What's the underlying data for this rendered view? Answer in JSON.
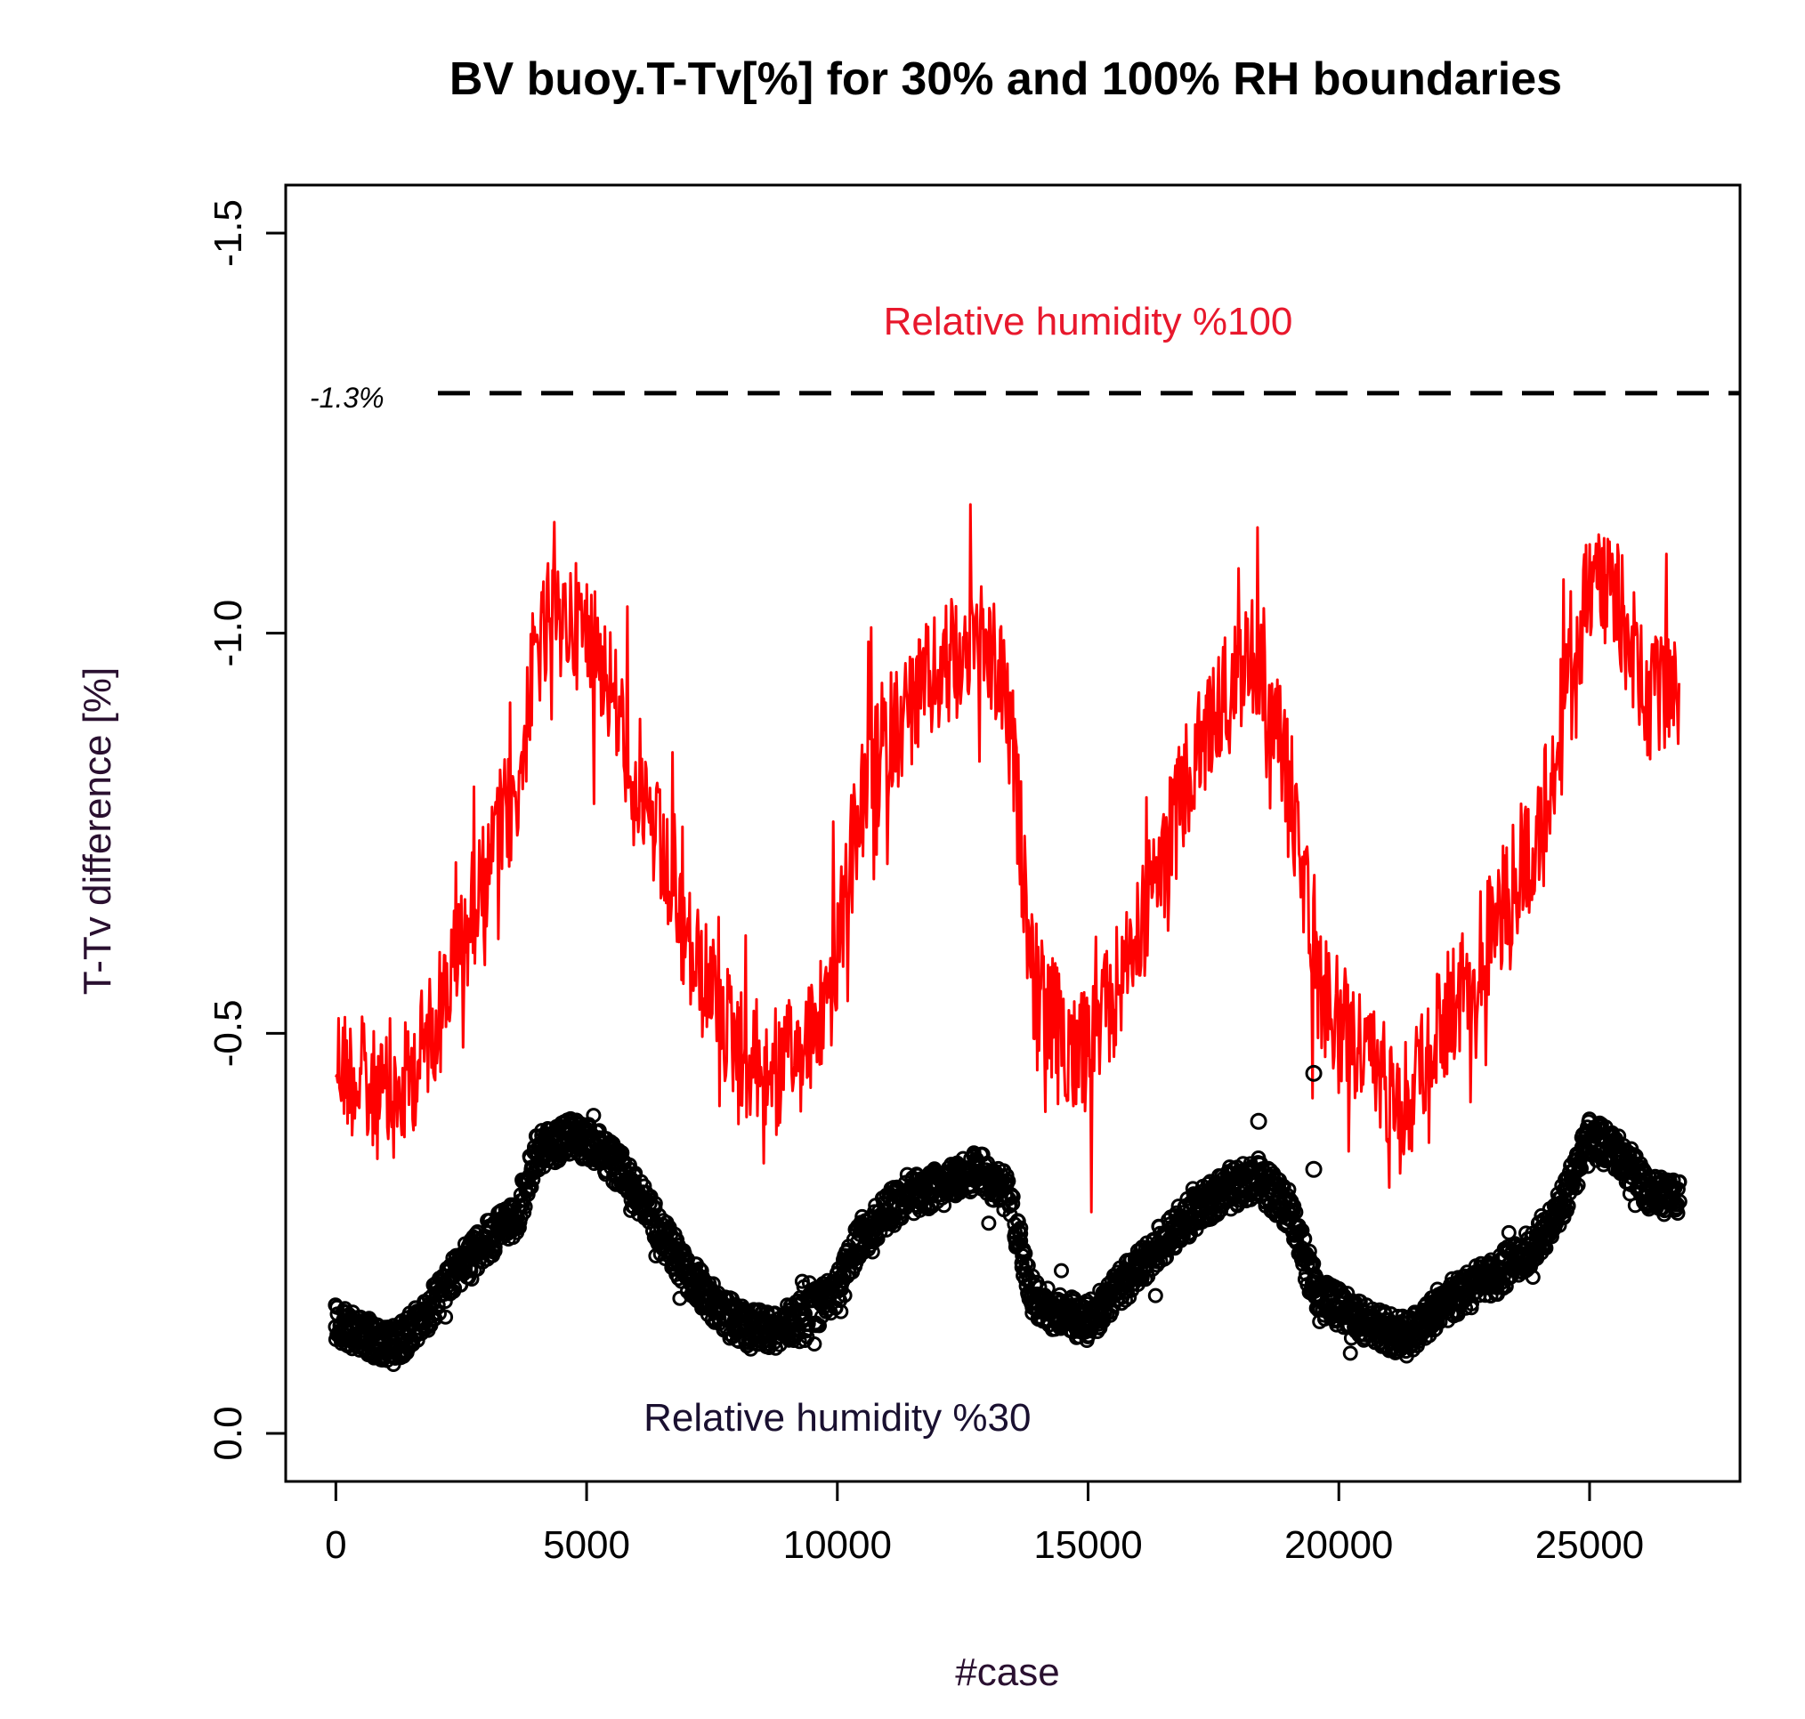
{
  "chart_data": {
    "type": "line",
    "title": "BV buoy.T-Tv[%] for 30% and 100% RH boundaries",
    "xlabel": "#case",
    "ylabel": "T-Tv difference [%]",
    "xlim": [
      -1000,
      28000
    ],
    "ylim": [
      0.06,
      -1.56
    ],
    "x_ticks": [
      0,
      5000,
      10000,
      15000,
      20000,
      25000
    ],
    "x_tick_labels": [
      "0",
      "5000",
      "10000",
      "15000",
      "20000",
      "25000"
    ],
    "y_ticks": [
      0.0,
      -0.5,
      -1.0,
      -1.5
    ],
    "y_tick_labels": [
      "0.0",
      "-0.5",
      "-1.0",
      "-1.5"
    ],
    "grid": false,
    "reference_line": {
      "y": -1.3,
      "label": "-1.3%",
      "style": "dashed",
      "color": "#000000"
    },
    "annotations": [
      {
        "text": "Relative humidity %100",
        "x": 15000,
        "y": -1.39,
        "color": "#ff0000"
      },
      {
        "text": "Relative humidity %30",
        "x": 10000,
        "y": -0.02,
        "color": "#000000"
      }
    ],
    "series": [
      {
        "name": "Relative humidity %100",
        "style": "line",
        "color": "#ff0000",
        "x": [
          0,
          600,
          1200,
          1800,
          2400,
          3000,
          3600,
          4000,
          4600,
          5200,
          5800,
          6400,
          7000,
          7600,
          8200,
          8800,
          9400,
          9900,
          10400,
          11000,
          11600,
          12200,
          12800,
          13400,
          13900,
          14400,
          15000,
          15600,
          16200,
          16800,
          17400,
          18000,
          18400,
          19000,
          19600,
          20200,
          20800,
          21400,
          22000,
          22600,
          23200,
          23800,
          24400,
          25000,
          25600,
          26200,
          26800
        ],
        "y": [
          -0.47,
          -0.43,
          -0.41,
          -0.49,
          -0.59,
          -0.71,
          -0.8,
          -0.98,
          -1.02,
          -0.99,
          -0.86,
          -0.74,
          -0.61,
          -0.53,
          -0.47,
          -0.45,
          -0.48,
          -0.56,
          -0.77,
          -0.87,
          -0.92,
          -0.96,
          -1.0,
          -0.92,
          -0.57,
          -0.5,
          -0.47,
          -0.56,
          -0.66,
          -0.78,
          -0.88,
          -0.95,
          -0.98,
          -0.82,
          -0.56,
          -0.5,
          -0.45,
          -0.42,
          -0.51,
          -0.57,
          -0.65,
          -0.73,
          -0.86,
          -1.07,
          -1.03,
          -0.91,
          -0.94
        ]
      },
      {
        "name": "Relative humidity %30",
        "style": "points",
        "color": "#000000",
        "x": [
          0,
          600,
          1200,
          1800,
          2400,
          3000,
          3600,
          4000,
          4600,
          5200,
          5800,
          6400,
          7000,
          7600,
          8200,
          8800,
          9400,
          9900,
          10400,
          11000,
          11600,
          12200,
          12800,
          13400,
          13900,
          14400,
          15000,
          15600,
          16200,
          16800,
          17400,
          18000,
          18400,
          19000,
          19600,
          20200,
          20800,
          21400,
          22000,
          22600,
          23200,
          23800,
          24400,
          25000,
          25600,
          26200,
          26800
        ],
        "y": [
          -0.14,
          -0.12,
          -0.11,
          -0.15,
          -0.2,
          -0.24,
          -0.27,
          -0.35,
          -0.37,
          -0.36,
          -0.32,
          -0.26,
          -0.2,
          -0.16,
          -0.13,
          -0.13,
          -0.15,
          -0.17,
          -0.24,
          -0.28,
          -0.3,
          -0.31,
          -0.33,
          -0.3,
          -0.17,
          -0.15,
          -0.14,
          -0.18,
          -0.22,
          -0.26,
          -0.29,
          -0.31,
          -0.32,
          -0.28,
          -0.17,
          -0.15,
          -0.13,
          -0.12,
          -0.16,
          -0.18,
          -0.2,
          -0.23,
          -0.28,
          -0.37,
          -0.35,
          -0.3,
          -0.29
        ]
      }
    ]
  }
}
